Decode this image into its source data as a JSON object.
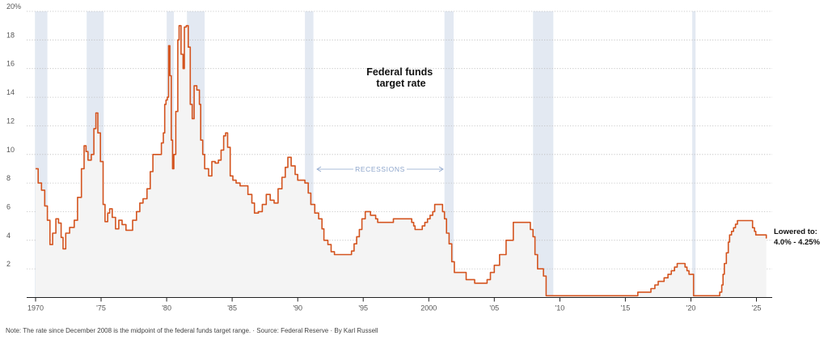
{
  "chart_data": {
    "type": "line",
    "title": "Federal funds target rate",
    "title_lines": [
      "Federal funds",
      "target rate"
    ],
    "xlim": [
      1970,
      2025.8
    ],
    "ylim": [
      0,
      20
    ],
    "x_ticks": [
      1970,
      1975,
      1980,
      1985,
      1990,
      1995,
      2000,
      2005,
      2010,
      2015,
      2020,
      2025
    ],
    "x_tick_labels": [
      "1970",
      "'75",
      "'80",
      "'85",
      "'90",
      "'95",
      "2000",
      "'05",
      "'10",
      "'15",
      "'20",
      "'25"
    ],
    "y_ticks": [
      2,
      4,
      6,
      8,
      10,
      12,
      14,
      16,
      18,
      20
    ],
    "y_tick_labels": [
      "2",
      "4",
      "6",
      "8",
      "10",
      "12",
      "14",
      "16",
      "18",
      "20%"
    ],
    "grid": true,
    "recession_label": "RECESSIONS",
    "recessions": [
      [
        1969.95,
        1970.9
      ],
      [
        1973.9,
        1975.2
      ],
      [
        1980.0,
        1980.55
      ],
      [
        1981.55,
        1982.9
      ],
      [
        1990.55,
        1991.2
      ],
      [
        2001.2,
        2001.9
      ],
      [
        2007.95,
        2009.5
      ],
      [
        2020.1,
        2020.35
      ]
    ],
    "final_annotation": [
      "Lowered to:",
      "4.0% - 4.25%"
    ],
    "colors": {
      "line": "#d4541f",
      "area": "#f4f4f4",
      "recession": "#e3e9f2",
      "recession_label": "#8ea6cc"
    },
    "series": [
      {
        "values": [
          [
            1970.0,
            9.0
          ],
          [
            1970.2,
            8.0
          ],
          [
            1970.45,
            7.5
          ],
          [
            1970.7,
            6.4
          ],
          [
            1970.9,
            5.4
          ],
          [
            1971.1,
            3.7
          ],
          [
            1971.3,
            4.5
          ],
          [
            1971.55,
            5.5
          ],
          [
            1971.75,
            5.2
          ],
          [
            1971.95,
            4.2
          ],
          [
            1972.1,
            3.4
          ],
          [
            1972.3,
            4.5
          ],
          [
            1972.6,
            4.9
          ],
          [
            1972.95,
            5.4
          ],
          [
            1973.2,
            7.0
          ],
          [
            1973.5,
            9.0
          ],
          [
            1973.7,
            10.6
          ],
          [
            1973.85,
            10.2
          ],
          [
            1974.0,
            9.6
          ],
          [
            1974.25,
            10.0
          ],
          [
            1974.45,
            11.8
          ],
          [
            1974.6,
            12.9
          ],
          [
            1974.75,
            11.5
          ],
          [
            1974.95,
            9.5
          ],
          [
            1975.15,
            6.5
          ],
          [
            1975.3,
            5.3
          ],
          [
            1975.5,
            5.9
          ],
          [
            1975.65,
            6.2
          ],
          [
            1975.85,
            5.6
          ],
          [
            1976.1,
            4.8
          ],
          [
            1976.35,
            5.4
          ],
          [
            1976.6,
            5.1
          ],
          [
            1976.9,
            4.7
          ],
          [
            1977.1,
            4.7
          ],
          [
            1977.4,
            5.4
          ],
          [
            1977.7,
            6.0
          ],
          [
            1977.95,
            6.6
          ],
          [
            1978.2,
            6.9
          ],
          [
            1978.5,
            7.6
          ],
          [
            1978.75,
            8.8
          ],
          [
            1978.95,
            10.0
          ],
          [
            1979.3,
            10.0
          ],
          [
            1979.6,
            10.8
          ],
          [
            1979.75,
            11.5
          ],
          [
            1979.85,
            13.5
          ],
          [
            1979.95,
            13.8
          ],
          [
            1980.05,
            14.0
          ],
          [
            1980.15,
            17.6
          ],
          [
            1980.25,
            15.5
          ],
          [
            1980.35,
            11.0
          ],
          [
            1980.45,
            9.0
          ],
          [
            1980.55,
            10.0
          ],
          [
            1980.7,
            13.0
          ],
          [
            1980.85,
            18.0
          ],
          [
            1980.95,
            19.0
          ],
          [
            1981.1,
            17.0
          ],
          [
            1981.25,
            16.0
          ],
          [
            1981.35,
            18.9
          ],
          [
            1981.5,
            19.0
          ],
          [
            1981.65,
            17.5
          ],
          [
            1981.8,
            13.5
          ],
          [
            1981.95,
            12.5
          ],
          [
            1982.1,
            14.8
          ],
          [
            1982.3,
            14.5
          ],
          [
            1982.5,
            13.5
          ],
          [
            1982.6,
            11.0
          ],
          [
            1982.75,
            10.0
          ],
          [
            1982.9,
            9.0
          ],
          [
            1983.2,
            8.5
          ],
          [
            1983.45,
            9.5
          ],
          [
            1983.7,
            9.4
          ],
          [
            1983.95,
            9.6
          ],
          [
            1984.15,
            10.3
          ],
          [
            1984.35,
            11.3
          ],
          [
            1984.5,
            11.5
          ],
          [
            1984.65,
            10.5
          ],
          [
            1984.85,
            8.5
          ],
          [
            1985.05,
            8.2
          ],
          [
            1985.3,
            8.0
          ],
          [
            1985.6,
            7.8
          ],
          [
            1985.9,
            7.8
          ],
          [
            1986.2,
            7.2
          ],
          [
            1986.5,
            6.6
          ],
          [
            1986.7,
            5.9
          ],
          [
            1987.0,
            6.0
          ],
          [
            1987.3,
            6.5
          ],
          [
            1987.6,
            7.2
          ],
          [
            1987.9,
            6.8
          ],
          [
            1988.2,
            6.6
          ],
          [
            1988.5,
            7.6
          ],
          [
            1988.8,
            8.4
          ],
          [
            1989.05,
            9.1
          ],
          [
            1989.25,
            9.8
          ],
          [
            1989.5,
            9.2
          ],
          [
            1989.8,
            8.6
          ],
          [
            1990.0,
            8.2
          ],
          [
            1990.55,
            8.0
          ],
          [
            1990.8,
            7.3
          ],
          [
            1991.0,
            6.5
          ],
          [
            1991.3,
            5.9
          ],
          [
            1991.6,
            5.5
          ],
          [
            1991.85,
            4.8
          ],
          [
            1992.0,
            4.0
          ],
          [
            1992.3,
            3.7
          ],
          [
            1992.55,
            3.2
          ],
          [
            1992.8,
            3.0
          ],
          [
            1993.5,
            3.0
          ],
          [
            1994.0,
            3.0
          ],
          [
            1994.1,
            3.25
          ],
          [
            1994.3,
            3.75
          ],
          [
            1994.5,
            4.25
          ],
          [
            1994.7,
            4.75
          ],
          [
            1994.9,
            5.5
          ],
          [
            1995.15,
            6.0
          ],
          [
            1995.55,
            5.75
          ],
          [
            1995.95,
            5.5
          ],
          [
            1996.1,
            5.25
          ],
          [
            1997.3,
            5.5
          ],
          [
            1998.7,
            5.25
          ],
          [
            1998.85,
            5.0
          ],
          [
            1998.95,
            4.75
          ],
          [
            1999.5,
            5.0
          ],
          [
            1999.7,
            5.25
          ],
          [
            1999.9,
            5.5
          ],
          [
            2000.1,
            5.75
          ],
          [
            2000.3,
            6.0
          ],
          [
            2000.45,
            6.5
          ],
          [
            2000.95,
            6.5
          ],
          [
            2001.05,
            6.0
          ],
          [
            2001.2,
            5.5
          ],
          [
            2001.35,
            4.5
          ],
          [
            2001.55,
            3.75
          ],
          [
            2001.75,
            2.5
          ],
          [
            2001.95,
            1.75
          ],
          [
            2002.85,
            1.25
          ],
          [
            2003.5,
            1.0
          ],
          [
            2004.45,
            1.25
          ],
          [
            2004.7,
            1.75
          ],
          [
            2005.0,
            2.25
          ],
          [
            2005.4,
            3.0
          ],
          [
            2005.9,
            4.0
          ],
          [
            2006.45,
            5.25
          ],
          [
            2007.6,
            5.25
          ],
          [
            2007.75,
            4.75
          ],
          [
            2007.95,
            4.25
          ],
          [
            2008.1,
            3.0
          ],
          [
            2008.3,
            2.0
          ],
          [
            2008.75,
            1.5
          ],
          [
            2008.95,
            0.125
          ],
          [
            2015.95,
            0.375
          ],
          [
            2016.95,
            0.625
          ],
          [
            2017.25,
            0.875
          ],
          [
            2017.5,
            1.125
          ],
          [
            2017.95,
            1.375
          ],
          [
            2018.25,
            1.625
          ],
          [
            2018.5,
            1.875
          ],
          [
            2018.75,
            2.125
          ],
          [
            2018.95,
            2.375
          ],
          [
            2019.55,
            2.125
          ],
          [
            2019.7,
            1.875
          ],
          [
            2019.85,
            1.625
          ],
          [
            2020.2,
            0.125
          ],
          [
            2022.2,
            0.375
          ],
          [
            2022.35,
            0.875
          ],
          [
            2022.45,
            1.625
          ],
          [
            2022.55,
            2.375
          ],
          [
            2022.7,
            3.125
          ],
          [
            2022.85,
            3.875
          ],
          [
            2022.95,
            4.375
          ],
          [
            2023.1,
            4.625
          ],
          [
            2023.25,
            4.875
          ],
          [
            2023.4,
            5.125
          ],
          [
            2023.55,
            5.375
          ],
          [
            2024.7,
            4.875
          ],
          [
            2024.85,
            4.625
          ],
          [
            2024.95,
            4.375
          ],
          [
            2025.7,
            4.375
          ],
          [
            2025.75,
            4.125
          ]
        ]
      }
    ]
  },
  "note": {
    "text": "Note: The rate since December 2008 is the midpoint of the federal funds target range.",
    "source": "Source: Federal Reserve",
    "byline": "By Karl Russell",
    "separator": "·"
  }
}
